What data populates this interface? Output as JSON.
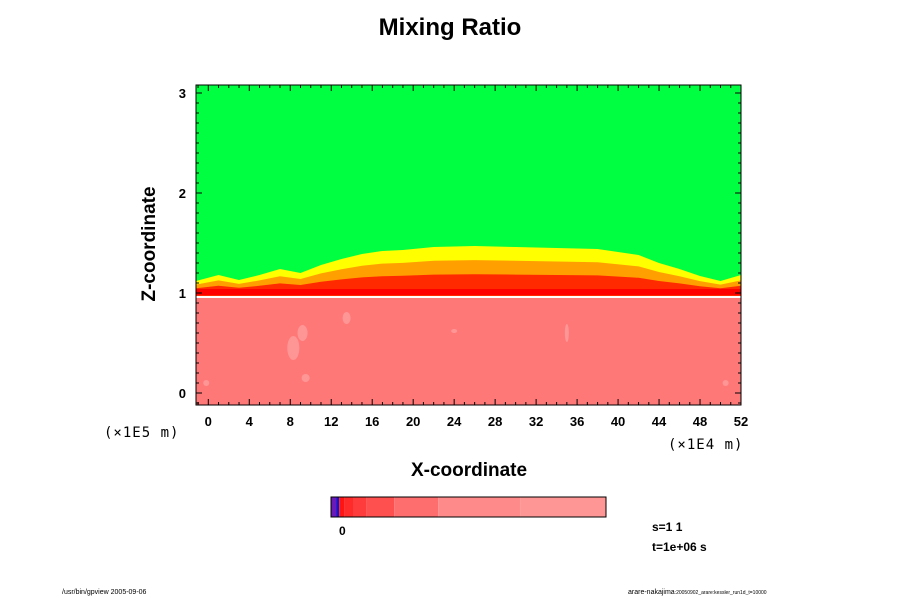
{
  "chart_data": {
    "type": "heatmap",
    "title": "Mixing Ratio",
    "xlabel": "X-coordinate",
    "ylabel": "Z-coordinate",
    "x_unit": "(×1E4 m)",
    "y_unit": "(×1E5 m)",
    "x_ticks": [
      0,
      4,
      8,
      12,
      16,
      20,
      24,
      28,
      32,
      36,
      40,
      44,
      48,
      52
    ],
    "y_ticks": [
      0,
      1,
      2,
      3
    ],
    "xlim": [
      -1.2,
      52
    ],
    "ylim": [
      -0.12,
      3.08
    ],
    "fields": [
      {
        "name": "upper",
        "z_range": [
          1.05,
          3.08
        ],
        "color": "#00ff40"
      },
      {
        "name": "interface",
        "z_range": [
          0.95,
          1.5
        ],
        "color": "#ff0000"
      },
      {
        "name": "lower",
        "z_range": [
          -0.12,
          0.95
        ],
        "color": "#ff7878"
      }
    ],
    "colorbar": {
      "segments": [
        {
          "color": "#6a1ab8",
          "width": 2
        },
        {
          "color": "#1414c8",
          "width": 1
        },
        {
          "color": "#ff1414",
          "width": 2
        },
        {
          "color": "#ff2a2a",
          "width": 3
        },
        {
          "color": "#ff3c3c",
          "width": 5
        },
        {
          "color": "#ff5050",
          "width": 10
        },
        {
          "color": "#ff6e6e",
          "width": 16
        },
        {
          "color": "#ff8a8a",
          "width": 30
        },
        {
          "color": "#ff9696",
          "width": 31
        }
      ],
      "label": "0"
    }
  },
  "annotations": {
    "step": "s=1 1",
    "time": "t=1e+06 s"
  },
  "footer": {
    "left": "/usr/bin/gpview 2005-09-06",
    "right_main": "arare-nakajima",
    "right_small": ":20050902_arare:kessler_run1d_t=10000"
  }
}
